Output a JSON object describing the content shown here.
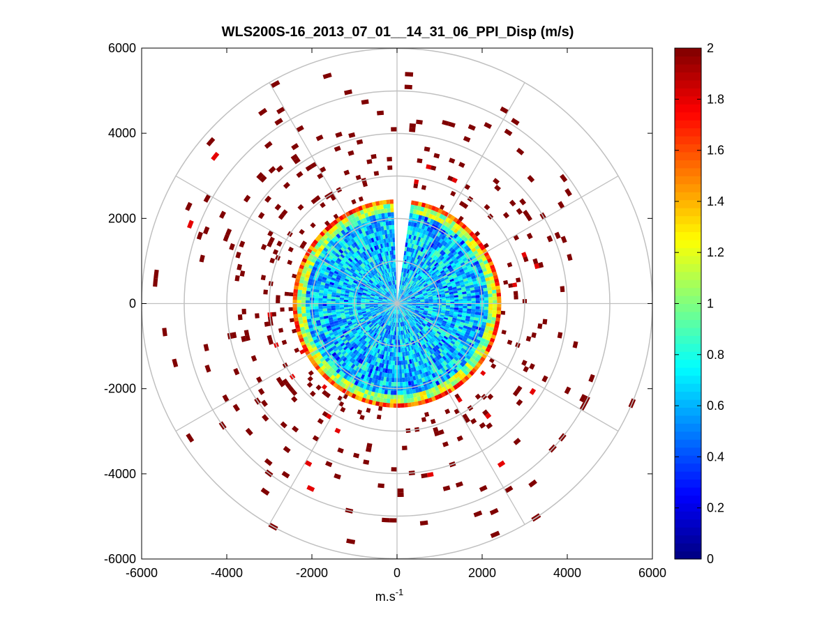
{
  "chart_data": {
    "type": "heatmap",
    "subtype": "polar-ppi",
    "title": "WLS200S-16_2013_07_01__14_31_06_PPI_Disp (m/s)",
    "xlabel": "m.s",
    "xlabel_superscript": "-1",
    "ylabel": "",
    "xlim": [
      -6000,
      6000
    ],
    "ylim": [
      -6000,
      6000
    ],
    "xticks": [
      -6000,
      -4000,
      -2000,
      0,
      2000,
      4000,
      6000
    ],
    "yticks": [
      6000,
      4000,
      2000,
      0,
      -2000,
      -4000,
      -6000
    ],
    "xtick_labels": [
      "-6000",
      "-4000",
      "-2000",
      "0",
      "2000",
      "4000",
      "6000"
    ],
    "ytick_labels": [
      "6000",
      "4000",
      "2000",
      "0",
      "-2000",
      "-4000",
      "-6000"
    ],
    "polar_grid": {
      "range_rings_m": [
        1000,
        2000,
        3000,
        4000,
        5000,
        6000
      ],
      "spoke_angles_deg": [
        0,
        30,
        60,
        90,
        120,
        150,
        180,
        210,
        240,
        270,
        300,
        330
      ]
    },
    "colorbar": {
      "colormap": "jet",
      "min": 0,
      "max": 2,
      "ticks": [
        2,
        1.8,
        1.6,
        1.4,
        1.2,
        1,
        0.8,
        0.6,
        0.4,
        0.2,
        0
      ],
      "tick_labels": [
        "2",
        "1.8",
        "1.6",
        "1.4",
        "1.2",
        "1",
        "0.8",
        "0.6",
        "0.4",
        "0.2",
        "0"
      ]
    },
    "inner_field": {
      "max_range_m": 2450,
      "gap_azimuth_deg": [
        -8,
        2
      ],
      "typical_value": 0.65,
      "value_range": [
        0.2,
        1.0
      ],
      "edge_ring_values": [
        1.1,
        1.6,
        2.0
      ]
    },
    "outer_scatter": {
      "min_range_m": 2450,
      "max_range_m": 6000,
      "dominant_value": 2.0,
      "occasional_value": 1.8
    }
  }
}
